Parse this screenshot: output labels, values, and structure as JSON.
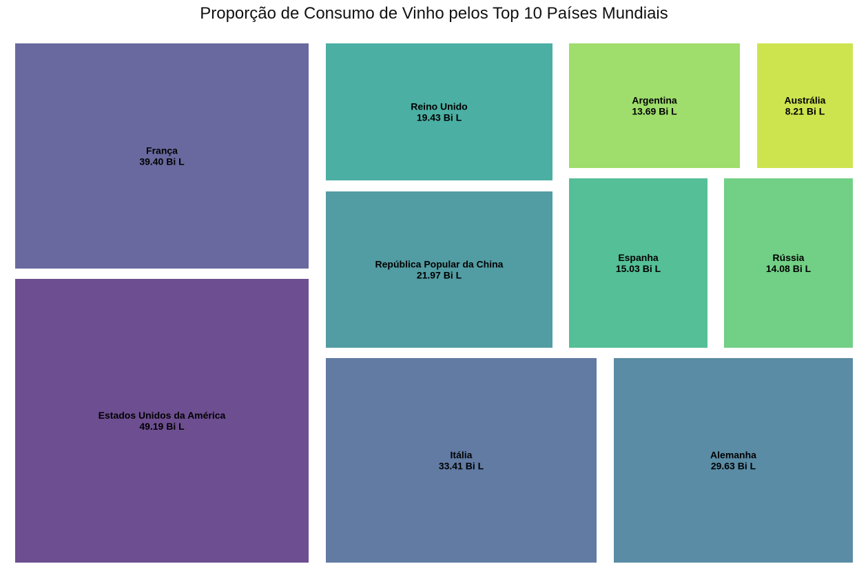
{
  "chart_data": {
    "type": "treemap",
    "title": "Proporção de Consumo de Vinho pelos Top 10 Países Mundiais",
    "unit_suffix": "Bi L",
    "items": [
      {
        "label": "Estados Unidos da América",
        "value": 49.19,
        "value_text": "49.19 Bi L",
        "color": "#6d4e90"
      },
      {
        "label": "França",
        "value": 39.4,
        "value_text": "39.40 Bi L",
        "color": "#69699f"
      },
      {
        "label": "Itália",
        "value": 33.41,
        "value_text": "33.41 Bi L",
        "color": "#617ba3"
      },
      {
        "label": "Alemanha",
        "value": 29.63,
        "value_text": "29.63 Bi L",
        "color": "#5a8ca5"
      },
      {
        "label": "República Popular da China",
        "value": 21.97,
        "value_text": "21.97 Bi L",
        "color": "#529ca3"
      },
      {
        "label": "Reino Unido",
        "value": 19.43,
        "value_text": "19.43 Bi L",
        "color": "#4bafa3"
      },
      {
        "label": "Espanha",
        "value": 15.03,
        "value_text": "15.03 Bi L",
        "color": "#55bf97"
      },
      {
        "label": "Rússia",
        "value": 14.08,
        "value_text": "14.08 Bi L",
        "color": "#72cf86"
      },
      {
        "label": "Argentina",
        "value": 13.69,
        "value_text": "13.69 Bi L",
        "color": "#9fdd6c"
      },
      {
        "label": "Austrália",
        "value": 8.21,
        "value_text": "8.21 Bi L",
        "color": "#cee44f"
      }
    ]
  }
}
